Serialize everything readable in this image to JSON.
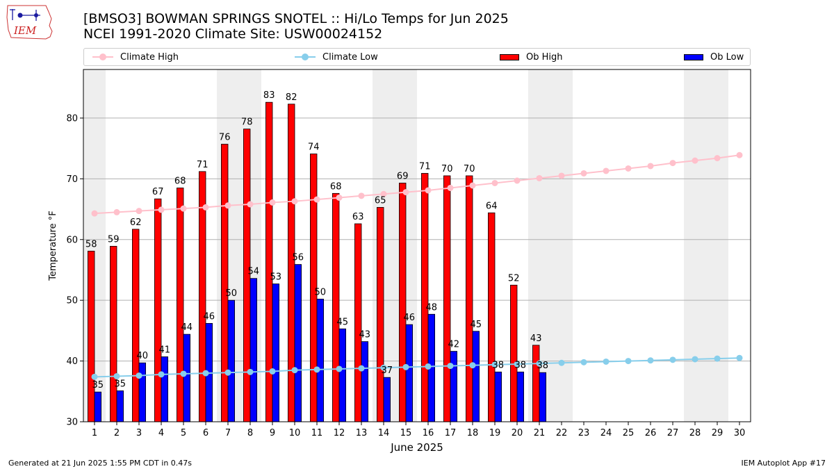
{
  "header": {
    "title_line1": "[BMSO3] BOWMAN SPRINGS SNOTEL :: Hi/Lo Temps for Jun 2025",
    "title_line2": "NCEI 1991-2020 Climate Site: USW00024152",
    "logo_text": "IEM"
  },
  "footer": {
    "generated": "Generated at 21 Jun 2025 1:55 PM CDT in 0.47s",
    "app": "IEM Autoplot App #17"
  },
  "colors": {
    "ob_high": "#ff0000",
    "ob_low": "#0000ff",
    "climate_high": "#ffc0cb",
    "climate_low": "#87ceeb",
    "weekend_shade": "#eeeeee"
  },
  "chart_data": {
    "type": "bar",
    "title": "[BMSO3] BOWMAN SPRINGS SNOTEL :: Hi/Lo Temps for Jun 2025",
    "subtitle": "NCEI 1991-2020 Climate Site: USW00024152",
    "xlabel": "June 2025",
    "ylabel": "Temperature °F",
    "ylim": [
      30,
      88
    ],
    "xlim": [
      0.5,
      30.5
    ],
    "yticks": [
      30,
      40,
      50,
      60,
      70,
      80
    ],
    "grid": "horizontal",
    "legend_position": "top",
    "shaded_weekend_days": [
      1,
      7,
      8,
      14,
      15,
      21,
      22,
      28,
      29
    ],
    "categories": [
      "1",
      "2",
      "3",
      "4",
      "5",
      "6",
      "7",
      "8",
      "9",
      "10",
      "11",
      "12",
      "13",
      "14",
      "15",
      "16",
      "17",
      "18",
      "19",
      "20",
      "21",
      "22",
      "23",
      "24",
      "25",
      "26",
      "27",
      "28",
      "29",
      "30"
    ],
    "series": [
      {
        "name": "Climate High",
        "kind": "line",
        "values": [
          64.3,
          64.5,
          64.7,
          64.9,
          65.1,
          65.3,
          65.6,
          65.8,
          66.1,
          66.3,
          66.6,
          66.9,
          67.2,
          67.5,
          67.8,
          68.1,
          68.5,
          68.9,
          69.3,
          69.7,
          70.1,
          70.5,
          70.9,
          71.3,
          71.7,
          72.1,
          72.6,
          73.0,
          73.4,
          73.9
        ]
      },
      {
        "name": "Climate Low",
        "kind": "line",
        "values": [
          37.4,
          37.5,
          37.6,
          37.8,
          37.9,
          38.0,
          38.1,
          38.2,
          38.3,
          38.5,
          38.6,
          38.7,
          38.8,
          38.9,
          39.0,
          39.1,
          39.2,
          39.3,
          39.4,
          39.5,
          39.6,
          39.7,
          39.8,
          39.9,
          40.0,
          40.1,
          40.2,
          40.3,
          40.4,
          40.5
        ]
      },
      {
        "name": "Ob High",
        "kind": "bar",
        "values": [
          58.1,
          58.9,
          61.7,
          66.7,
          68.5,
          71.2,
          75.7,
          78.2,
          82.6,
          82.3,
          74.1,
          67.6,
          62.6,
          65.3,
          69.3,
          70.9,
          70.5,
          70.5,
          64.4,
          52.5,
          42.6,
          null,
          null,
          null,
          null,
          null,
          null,
          null,
          null,
          null
        ],
        "labels": [
          "58",
          "59",
          "62",
          "67",
          "68",
          "71",
          "76",
          "78",
          "83",
          "82",
          "74",
          "68",
          "63",
          "65",
          "69",
          "71",
          "70",
          "70",
          "64",
          "52",
          "43",
          "",
          "",
          "",
          "",
          "",
          "",
          "",
          "",
          ""
        ]
      },
      {
        "name": "Ob Low",
        "kind": "bar",
        "values": [
          34.9,
          35.1,
          39.7,
          40.7,
          44.4,
          46.2,
          50.0,
          53.6,
          52.7,
          55.9,
          50.2,
          45.3,
          43.2,
          37.3,
          46.0,
          47.7,
          41.6,
          44.9,
          38.2,
          38.2,
          38.1,
          null,
          null,
          null,
          null,
          null,
          null,
          null,
          null,
          null
        ],
        "labels": [
          "35",
          "35",
          "40",
          "41",
          "44",
          "46",
          "50",
          "54",
          "53",
          "56",
          "50",
          "45",
          "43",
          "37",
          "46",
          "48",
          "42",
          "45",
          "38",
          "38",
          "38",
          "",
          "",
          "",
          "",
          "",
          "",
          "",
          "",
          ""
        ]
      }
    ]
  }
}
